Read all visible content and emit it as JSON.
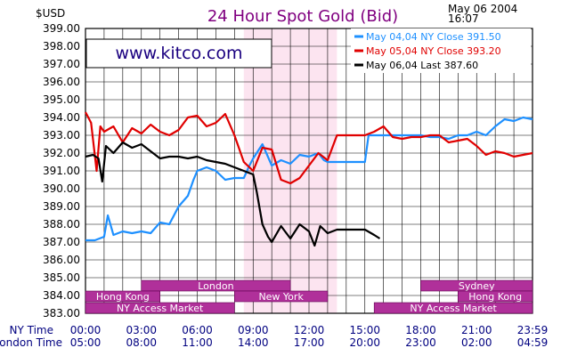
{
  "header": {
    "unit": "$USD",
    "title": "24 Hour Spot Gold (Bid)",
    "date": "May  06  2004",
    "time": "16:07",
    "website": "www.kitco.com"
  },
  "rows": {
    "ny_label": "NY Time",
    "london_label": "London Time"
  },
  "colors": {
    "blue": "#1e90ff",
    "red": "#e00000",
    "black": "#000000",
    "market": "#b0309a",
    "market_light": "#ffffff",
    "highlight": "#fce4f0",
    "grid": "#000000"
  },
  "sessions": [
    {
      "label": "London",
      "start": 3.0,
      "end": 11.0,
      "row": 0
    },
    {
      "label": "Sydney",
      "start": 18.0,
      "end": 24.0,
      "row": 0
    },
    {
      "label": "Hong  Kong",
      "start": 0.0,
      "end": 4.0,
      "row": 1
    },
    {
      "label": "New  York",
      "start": 8.0,
      "end": 13.0,
      "row": 1
    },
    {
      "label": "Hong  Kong",
      "start": 20.0,
      "end": 24.0,
      "row": 1
    },
    {
      "label": "NY  Access  Market",
      "start": 0.0,
      "end": 8.0,
      "row": 2
    },
    {
      "label": "NY  Access  Market",
      "start": 15.5,
      "end": 24.0,
      "row": 2
    }
  ],
  "chart_data": {
    "type": "line",
    "title": "24 Hour Spot Gold (Bid)",
    "ylabel": "$USD",
    "ylim": [
      383.0,
      399.0
    ],
    "xlim": [
      0,
      24
    ],
    "x_ticks_ny": [
      "00:00",
      "03:00",
      "06:00",
      "09:00",
      "12:00",
      "15:00",
      "18:00",
      "21:00",
      "23:59"
    ],
    "x_ticks_london": [
      "05:00",
      "08:00",
      "11:00",
      "14:00",
      "17:00",
      "20:00",
      "23:00",
      "02:00",
      "04:59"
    ],
    "y_ticks": [
      "399.00",
      "398.00",
      "397.00",
      "396.00",
      "395.00",
      "394.00",
      "393.00",
      "392.00",
      "391.00",
      "390.00",
      "389.00",
      "388.00",
      "387.00",
      "386.00",
      "385.00",
      "384.00",
      "383.00"
    ],
    "highlight_range": [
      8.5,
      13.5
    ],
    "grid": true,
    "legend_position": "top-right",
    "series": [
      {
        "name": "May  04,04  NY  Close  391.50",
        "color": "blue",
        "x": [
          0,
          0.5,
          1,
          1.2,
          1.5,
          2,
          2.5,
          3,
          3.5,
          4,
          4.5,
          5,
          5.5,
          5.8,
          6,
          6.5,
          7,
          7.5,
          8,
          8.5,
          8.8,
          9,
          9.5,
          10,
          10.5,
          11,
          11.5,
          12,
          12.5,
          12.8,
          13,
          13.5,
          14,
          14.5,
          15,
          15.2,
          15.5,
          16,
          16.5,
          17,
          17.5,
          18,
          18.5,
          19,
          19.5,
          20,
          20.5,
          21,
          21.5,
          22,
          22.5,
          23,
          23.5,
          24
        ],
        "y": [
          387.1,
          387.1,
          387.3,
          388.5,
          387.4,
          387.6,
          387.5,
          387.6,
          387.5,
          388.1,
          388.0,
          389.0,
          389.6,
          390.5,
          391.0,
          391.2,
          391.0,
          390.5,
          390.6,
          390.6,
          391.3,
          391.7,
          392.5,
          391.3,
          391.6,
          391.4,
          391.9,
          391.8,
          392.0,
          391.6,
          391.5,
          391.5,
          391.5,
          391.5,
          391.5,
          393.0,
          393.0,
          393.0,
          393.0,
          393.0,
          393.0,
          393.0,
          392.9,
          392.9,
          392.8,
          393.0,
          393.0,
          393.2,
          393.0,
          393.5,
          393.9,
          393.8,
          394.0,
          393.9
        ]
      },
      {
        "name": "May  05,04  NY  Close  393.20",
        "color": "red",
        "x": [
          0,
          0.3,
          0.6,
          0.8,
          1,
          1.5,
          2,
          2.5,
          3,
          3.5,
          4,
          4.5,
          5,
          5.5,
          6,
          6.5,
          7,
          7.5,
          8,
          8.5,
          9,
          9.5,
          10,
          10.5,
          11,
          11.5,
          12,
          12.5,
          13,
          13.5,
          14,
          14.5,
          15,
          15.5,
          16,
          16.5,
          17,
          17.5,
          18,
          18.5,
          19,
          19.5,
          20,
          20.5,
          21,
          21.5,
          22,
          22.5,
          23,
          23.5,
          24
        ],
        "y": [
          394.3,
          393.7,
          391.0,
          393.5,
          393.2,
          393.5,
          392.6,
          393.4,
          393.1,
          393.6,
          393.2,
          393.0,
          393.3,
          394.0,
          394.1,
          393.5,
          393.7,
          394.2,
          393.0,
          391.5,
          391.0,
          392.3,
          392.2,
          390.5,
          390.3,
          390.6,
          391.3,
          392.0,
          391.6,
          393.0,
          393.0,
          393.0,
          393.0,
          393.2,
          393.5,
          392.9,
          392.8,
          392.9,
          392.9,
          393.0,
          393.0,
          392.6,
          392.7,
          392.8,
          392.4,
          391.9,
          392.1,
          392.0,
          391.8,
          391.9,
          392.0
        ]
      },
      {
        "name": "May  06,04  Last  387.60",
        "color": "black",
        "x": [
          0,
          0.4,
          0.7,
          0.9,
          1.1,
          1.5,
          2,
          2.5,
          3,
          3.5,
          4,
          4.5,
          5,
          5.5,
          6,
          6.5,
          7,
          7.5,
          8,
          8.5,
          9,
          9.2,
          9.5,
          9.8,
          10,
          10.5,
          11,
          11.5,
          12,
          12.3,
          12.6,
          13,
          13.5,
          14,
          14.5,
          15,
          15.5,
          15.8
        ],
        "y": [
          391.8,
          391.9,
          391.7,
          390.4,
          392.4,
          392.0,
          392.6,
          392.3,
          392.5,
          392.1,
          391.7,
          391.8,
          391.8,
          391.7,
          391.8,
          391.6,
          391.5,
          391.4,
          391.2,
          391.0,
          390.8,
          389.8,
          388.0,
          387.3,
          387.0,
          387.9,
          387.2,
          388.0,
          387.6,
          386.8,
          387.9,
          387.5,
          387.7,
          387.7,
          387.7,
          387.7,
          387.4,
          387.2
        ]
      }
    ]
  }
}
